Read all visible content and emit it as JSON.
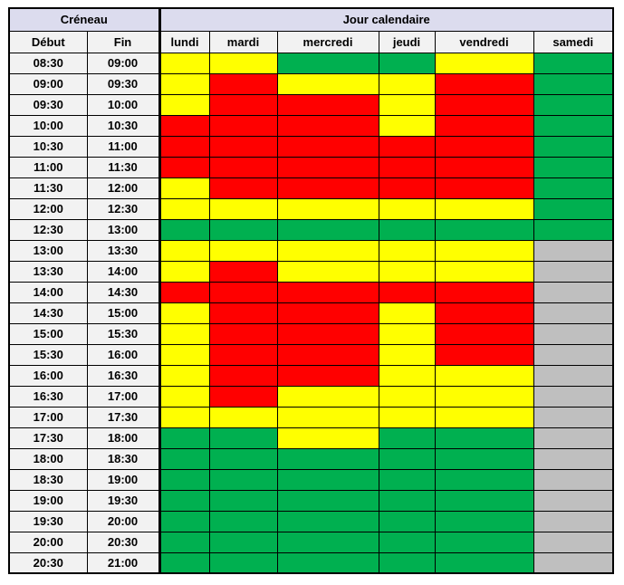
{
  "table": {
    "creneau_label": "Créneau",
    "jour_label": "Jour calendaire",
    "col_debut": "Début",
    "col_fin": "Fin",
    "days": [
      "lundi",
      "mardi",
      "mercredi",
      "jeudi",
      "vendredi",
      "samedi"
    ],
    "palette": {
      "Y": "#FFFF00",
      "R": "#FF0000",
      "G": "#00B050",
      "X": "#BFBFBF"
    },
    "theme": {
      "group_header_bg": "#DCDCEE",
      "group_header_fg": "#1F3864",
      "sub_header_bg": "#F2F2F2",
      "grid_border": "#000000"
    },
    "rows": [
      {
        "debut": "08:30",
        "fin": "09:00",
        "slots": [
          "Y",
          "Y",
          "G",
          "G",
          "Y",
          "G"
        ]
      },
      {
        "debut": "09:00",
        "fin": "09:30",
        "slots": [
          "Y",
          "R",
          "Y",
          "Y",
          "R",
          "G"
        ]
      },
      {
        "debut": "09:30",
        "fin": "10:00",
        "slots": [
          "Y",
          "R",
          "R",
          "Y",
          "R",
          "G"
        ]
      },
      {
        "debut": "10:00",
        "fin": "10:30",
        "slots": [
          "R",
          "R",
          "R",
          "Y",
          "R",
          "G"
        ]
      },
      {
        "debut": "10:30",
        "fin": "11:00",
        "slots": [
          "R",
          "R",
          "R",
          "R",
          "R",
          "G"
        ]
      },
      {
        "debut": "11:00",
        "fin": "11:30",
        "slots": [
          "R",
          "R",
          "R",
          "R",
          "R",
          "G"
        ]
      },
      {
        "debut": "11:30",
        "fin": "12:00",
        "slots": [
          "Y",
          "R",
          "R",
          "R",
          "R",
          "G"
        ]
      },
      {
        "debut": "12:00",
        "fin": "12:30",
        "slots": [
          "Y",
          "Y",
          "Y",
          "Y",
          "Y",
          "G"
        ]
      },
      {
        "debut": "12:30",
        "fin": "13:00",
        "slots": [
          "G",
          "G",
          "G",
          "G",
          "G",
          "G"
        ]
      },
      {
        "debut": "13:00",
        "fin": "13:30",
        "slots": [
          "Y",
          "Y",
          "Y",
          "Y",
          "Y",
          "X"
        ]
      },
      {
        "debut": "13:30",
        "fin": "14:00",
        "slots": [
          "Y",
          "R",
          "Y",
          "Y",
          "Y",
          "X"
        ]
      },
      {
        "debut": "14:00",
        "fin": "14:30",
        "slots": [
          "R",
          "R",
          "R",
          "R",
          "R",
          "X"
        ]
      },
      {
        "debut": "14:30",
        "fin": "15:00",
        "slots": [
          "Y",
          "R",
          "R",
          "Y",
          "R",
          "X"
        ]
      },
      {
        "debut": "15:00",
        "fin": "15:30",
        "slots": [
          "Y",
          "R",
          "R",
          "Y",
          "R",
          "X"
        ]
      },
      {
        "debut": "15:30",
        "fin": "16:00",
        "slots": [
          "Y",
          "R",
          "R",
          "Y",
          "R",
          "X"
        ]
      },
      {
        "debut": "16:00",
        "fin": "16:30",
        "slots": [
          "Y",
          "R",
          "R",
          "Y",
          "Y",
          "X"
        ]
      },
      {
        "debut": "16:30",
        "fin": "17:00",
        "slots": [
          "Y",
          "R",
          "Y",
          "Y",
          "Y",
          "X"
        ]
      },
      {
        "debut": "17:00",
        "fin": "17:30",
        "slots": [
          "Y",
          "Y",
          "Y",
          "Y",
          "Y",
          "X"
        ]
      },
      {
        "debut": "17:30",
        "fin": "18:00",
        "slots": [
          "G",
          "G",
          "Y",
          "G",
          "G",
          "X"
        ]
      },
      {
        "debut": "18:00",
        "fin": "18:30",
        "slots": [
          "G",
          "G",
          "G",
          "G",
          "G",
          "X"
        ]
      },
      {
        "debut": "18:30",
        "fin": "19:00",
        "slots": [
          "G",
          "G",
          "G",
          "G",
          "G",
          "X"
        ]
      },
      {
        "debut": "19:00",
        "fin": "19:30",
        "slots": [
          "G",
          "G",
          "G",
          "G",
          "G",
          "X"
        ]
      },
      {
        "debut": "19:30",
        "fin": "20:00",
        "slots": [
          "G",
          "G",
          "G",
          "G",
          "G",
          "X"
        ]
      },
      {
        "debut": "20:00",
        "fin": "20:30",
        "slots": [
          "G",
          "G",
          "G",
          "G",
          "G",
          "X"
        ]
      },
      {
        "debut": "20:30",
        "fin": "21:00",
        "slots": [
          "G",
          "G",
          "G",
          "G",
          "G",
          "X"
        ]
      }
    ]
  }
}
